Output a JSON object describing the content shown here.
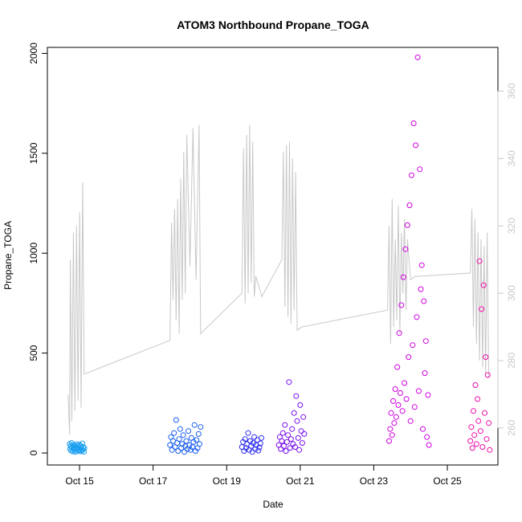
{
  "chart_data": {
    "type": "scatter",
    "title": "ATOM3 Northbound Propane_TOGA",
    "xlabel": "Date",
    "ylabel": "Propane_TOGA",
    "xlim": [
      "2017-10-14T03:00",
      "2017-10-26T09:00"
    ],
    "ylim": [
      -60,
      2030
    ],
    "y2lim": [
      249,
      373
    ],
    "x_ticks": [
      {
        "label": "Oct 15",
        "value": "2017-10-15T00:00"
      },
      {
        "label": "Oct 17",
        "value": "2017-10-17T00:00"
      },
      {
        "label": "Oct 19",
        "value": "2017-10-19T00:00"
      },
      {
        "label": "Oct 21",
        "value": "2017-10-21T00:00"
      },
      {
        "label": "Oct 23",
        "value": "2017-10-23T00:00"
      },
      {
        "label": "Oct 25",
        "value": "2017-10-25T00:00"
      }
    ],
    "y_ticks": [
      "0",
      "500",
      "1000",
      "1500",
      "2000"
    ],
    "y2_ticks": [
      "260",
      "280",
      "300",
      "320",
      "340",
      "360"
    ],
    "series": [
      {
        "color": "#1a9ff0",
        "points": [
          [
            "2017-10-14T17:30",
            45
          ],
          [
            "2017-10-14T17:50",
            20
          ],
          [
            "2017-10-14T18:10",
            35
          ],
          [
            "2017-10-14T18:30",
            12
          ],
          [
            "2017-10-14T18:50",
            50
          ],
          [
            "2017-10-14T19:10",
            28
          ],
          [
            "2017-10-14T19:30",
            8
          ],
          [
            "2017-10-14T19:50",
            40
          ],
          [
            "2017-10-14T20:10",
            22
          ],
          [
            "2017-10-14T20:30",
            15
          ],
          [
            "2017-10-14T20:50",
            38
          ],
          [
            "2017-10-14T21:10",
            5
          ],
          [
            "2017-10-14T21:30",
            30
          ],
          [
            "2017-10-14T21:50",
            18
          ],
          [
            "2017-10-14T22:10",
            44
          ],
          [
            "2017-10-14T22:30",
            10
          ],
          [
            "2017-10-14T22:50",
            25
          ],
          [
            "2017-10-14T23:10",
            33
          ],
          [
            "2017-10-14T23:30",
            14
          ],
          [
            "2017-10-14T23:50",
            42
          ],
          [
            "2017-10-15T00:10",
            20
          ],
          [
            "2017-10-15T00:30",
            8
          ],
          [
            "2017-10-15T00:50",
            36
          ],
          [
            "2017-10-15T01:10",
            26
          ],
          [
            "2017-10-15T01:30",
            12
          ],
          [
            "2017-10-15T01:50",
            48
          ],
          [
            "2017-10-15T02:10",
            16
          ],
          [
            "2017-10-15T02:30",
            30
          ],
          [
            "2017-10-15T02:50",
            6
          ],
          [
            "2017-10-15T03:10",
            24
          ]
        ]
      },
      {
        "color": "#1a5ff0",
        "points": [
          [
            "2017-10-17T11:00",
            40
          ],
          [
            "2017-10-17T11:40",
            80
          ],
          [
            "2017-10-17T12:20",
            15
          ],
          [
            "2017-10-17T13:00",
            60
          ],
          [
            "2017-10-17T13:40",
            100
          ],
          [
            "2017-10-17T14:20",
            30
          ],
          [
            "2017-10-17T15:00",
            165
          ],
          [
            "2017-10-17T15:40",
            50
          ],
          [
            "2017-10-17T16:20",
            10
          ],
          [
            "2017-10-17T17:00",
            70
          ],
          [
            "2017-10-17T17:40",
            120
          ],
          [
            "2017-10-17T18:20",
            25
          ],
          [
            "2017-10-17T19:00",
            45
          ],
          [
            "2017-10-17T19:40",
            90
          ],
          [
            "2017-10-17T20:20",
            5
          ],
          [
            "2017-10-17T21:00",
            35
          ],
          [
            "2017-10-17T21:40",
            60
          ],
          [
            "2017-10-17T22:20",
            20
          ],
          [
            "2017-10-17T23:00",
            110
          ],
          [
            "2017-10-17T23:40",
            40
          ],
          [
            "2017-10-18T00:20",
            15
          ],
          [
            "2017-10-18T01:00",
            75
          ],
          [
            "2017-10-18T01:40",
            30
          ],
          [
            "2017-10-18T02:20",
            55
          ],
          [
            "2017-10-18T03:00",
            140
          ],
          [
            "2017-10-18T03:40",
            10
          ],
          [
            "2017-10-18T04:20",
            65
          ],
          [
            "2017-10-18T05:00",
            25
          ],
          [
            "2017-10-18T05:40",
            95
          ],
          [
            "2017-10-18T06:20",
            45
          ],
          [
            "2017-10-18T07:00",
            130
          ]
        ]
      },
      {
        "color": "#2f2ff0",
        "points": [
          [
            "2017-10-19T10:00",
            30
          ],
          [
            "2017-10-19T10:40",
            55
          ],
          [
            "2017-10-19T11:20",
            10
          ],
          [
            "2017-10-19T12:00",
            70
          ],
          [
            "2017-10-19T12:40",
            25
          ],
          [
            "2017-10-19T13:20",
            45
          ],
          [
            "2017-10-19T14:00",
            100
          ],
          [
            "2017-10-19T14:40",
            15
          ],
          [
            "2017-10-19T15:20",
            60
          ],
          [
            "2017-10-19T16:00",
            35
          ],
          [
            "2017-10-19T16:40",
            5
          ],
          [
            "2017-10-19T17:20",
            50
          ],
          [
            "2017-10-19T18:00",
            80
          ],
          [
            "2017-10-19T18:40",
            20
          ],
          [
            "2017-10-19T19:20",
            40
          ],
          [
            "2017-10-19T20:00",
            65
          ],
          [
            "2017-10-19T20:40",
            12
          ],
          [
            "2017-10-19T21:20",
            28
          ],
          [
            "2017-10-19T22:00",
            48
          ],
          [
            "2017-10-19T22:40",
            75
          ]
        ]
      },
      {
        "color": "#7a10f0",
        "points": [
          [
            "2017-10-20T10:00",
            40
          ],
          [
            "2017-10-20T10:40",
            80
          ],
          [
            "2017-10-20T11:20",
            20
          ],
          [
            "2017-10-20T12:00",
            60
          ],
          [
            "2017-10-20T12:40",
            100
          ],
          [
            "2017-10-20T13:20",
            35
          ],
          [
            "2017-10-20T14:00",
            140
          ],
          [
            "2017-10-20T14:40",
            10
          ],
          [
            "2017-10-20T15:20",
            55
          ],
          [
            "2017-10-20T16:00",
            90
          ],
          [
            "2017-10-20T16:40",
            355
          ],
          [
            "2017-10-20T17:20",
            25
          ],
          [
            "2017-10-20T18:00",
            70
          ],
          [
            "2017-10-20T18:40",
            120
          ],
          [
            "2017-10-20T19:20",
            45
          ],
          [
            "2017-10-20T20:00",
            200
          ],
          [
            "2017-10-20T20:40",
            30
          ],
          [
            "2017-10-20T21:20",
            285
          ],
          [
            "2017-10-20T22:00",
            160
          ],
          [
            "2017-10-20T22:40",
            75
          ],
          [
            "2017-10-20T23:20",
            15
          ],
          [
            "2017-10-21T00:00",
            240
          ],
          [
            "2017-10-21T00:40",
            110
          ],
          [
            "2017-10-21T01:20",
            50
          ],
          [
            "2017-10-21T02:00",
            180
          ],
          [
            "2017-10-21T02:40",
            95
          ]
        ]
      },
      {
        "color": "#d000e0",
        "points": [
          [
            "2017-10-23T10:00",
            60
          ],
          [
            "2017-10-23T10:40",
            120
          ],
          [
            "2017-10-23T11:20",
            200
          ],
          [
            "2017-10-23T12:00",
            90
          ],
          [
            "2017-10-23T12:40",
            260
          ],
          [
            "2017-10-23T13:20",
            150
          ],
          [
            "2017-10-23T14:00",
            320
          ],
          [
            "2017-10-23T14:40",
            180
          ],
          [
            "2017-10-23T15:20",
            430
          ],
          [
            "2017-10-23T16:00",
            240
          ],
          [
            "2017-10-23T16:40",
            600
          ],
          [
            "2017-10-23T17:20",
            300
          ],
          [
            "2017-10-23T18:00",
            740
          ],
          [
            "2017-10-23T18:40",
            210
          ],
          [
            "2017-10-23T19:20",
            880
          ],
          [
            "2017-10-23T20:00",
            350
          ],
          [
            "2017-10-23T20:40",
            1020
          ],
          [
            "2017-10-23T21:20",
            270
          ],
          [
            "2017-10-23T22:00",
            1140
          ],
          [
            "2017-10-23T22:40",
            480
          ],
          [
            "2017-10-23T23:20",
            1240
          ],
          [
            "2017-10-24T00:00",
            160
          ],
          [
            "2017-10-24T00:40",
            1390
          ],
          [
            "2017-10-24T01:20",
            540
          ],
          [
            "2017-10-24T02:00",
            1650
          ],
          [
            "2017-10-24T02:40",
            230
          ],
          [
            "2017-10-24T03:20",
            1540
          ],
          [
            "2017-10-24T04:00",
            680
          ],
          [
            "2017-10-24T04:40",
            1980
          ],
          [
            "2017-10-24T05:20",
            310
          ],
          [
            "2017-10-24T06:00",
            1420
          ],
          [
            "2017-10-24T06:40",
            820
          ],
          [
            "2017-10-24T07:20",
            940
          ],
          [
            "2017-10-24T08:00",
            120
          ],
          [
            "2017-10-24T08:40",
            760
          ],
          [
            "2017-10-24T09:20",
            400
          ],
          [
            "2017-10-24T10:00",
            560
          ],
          [
            "2017-10-24T10:40",
            80
          ],
          [
            "2017-10-24T11:20",
            290
          ],
          [
            "2017-10-24T12:00",
            40
          ]
        ]
      },
      {
        "color": "#ee0ea8",
        "points": [
          [
            "2017-10-25T15:00",
            60
          ],
          [
            "2017-10-25T15:40",
            130
          ],
          [
            "2017-10-25T16:20",
            25
          ],
          [
            "2017-10-25T17:00",
            210
          ],
          [
            "2017-10-25T17:40",
            90
          ],
          [
            "2017-10-25T18:20",
            340
          ],
          [
            "2017-10-25T19:00",
            45
          ],
          [
            "2017-10-25T19:40",
            270
          ],
          [
            "2017-10-25T20:20",
            160
          ],
          [
            "2017-10-25T21:00",
            960
          ],
          [
            "2017-10-25T21:40",
            110
          ],
          [
            "2017-10-25T22:20",
            720
          ],
          [
            "2017-10-25T23:00",
            30
          ],
          [
            "2017-10-25T23:40",
            840
          ],
          [
            "2017-10-26T00:20",
            200
          ],
          [
            "2017-10-26T01:00",
            480
          ],
          [
            "2017-10-26T01:40",
            70
          ],
          [
            "2017-10-26T02:20",
            390
          ],
          [
            "2017-10-26T03:00",
            150
          ],
          [
            "2017-10-26T03:40",
            15
          ]
        ]
      }
    ],
    "secondary_line": {
      "color": "#c8c8c8",
      "points": [
        [
          "2017-10-14T16:30",
          270
        ],
        [
          "2017-10-14T17:30",
          258
        ],
        [
          "2017-10-14T18:00",
          310
        ],
        [
          "2017-10-14T19:00",
          262
        ],
        [
          "2017-10-14T20:00",
          318
        ],
        [
          "2017-10-14T21:00",
          265
        ],
        [
          "2017-10-14T22:00",
          320
        ],
        [
          "2017-10-14T23:00",
          268
        ],
        [
          "2017-10-15T00:00",
          324
        ],
        [
          "2017-10-15T01:00",
          266
        ],
        [
          "2017-10-15T02:00",
          333
        ],
        [
          "2017-10-15T03:00",
          276
        ],
        [
          "2017-10-17T11:00",
          286
        ],
        [
          "2017-10-17T12:00",
          321
        ],
        [
          "2017-10-17T13:00",
          298
        ],
        [
          "2017-10-17T14:00",
          325
        ],
        [
          "2017-10-17T15:00",
          292
        ],
        [
          "2017-10-17T16:00",
          328
        ],
        [
          "2017-10-17T17:00",
          288
        ],
        [
          "2017-10-17T18:00",
          334
        ],
        [
          "2017-10-17T19:00",
          298
        ],
        [
          "2017-10-17T20:00",
          342
        ],
        [
          "2017-10-17T21:00",
          300
        ],
        [
          "2017-10-17T22:00",
          347
        ],
        [
          "2017-10-18T00:00",
          308
        ],
        [
          "2017-10-18T02:00",
          349
        ],
        [
          "2017-10-18T04:00",
          304
        ],
        [
          "2017-10-18T06:00",
          350
        ],
        [
          "2017-10-18T07:00",
          288
        ],
        [
          "2017-10-19T10:00",
          300
        ],
        [
          "2017-10-19T11:00",
          343
        ],
        [
          "2017-10-19T12:00",
          297
        ],
        [
          "2017-10-19T13:00",
          347
        ],
        [
          "2017-10-19T14:00",
          300
        ],
        [
          "2017-10-19T15:00",
          350
        ],
        [
          "2017-10-19T16:00",
          303
        ],
        [
          "2017-10-19T17:00",
          345
        ],
        [
          "2017-10-19T18:00",
          299
        ],
        [
          "2017-10-19T19:00",
          305
        ],
        [
          "2017-10-19T23:00",
          299
        ],
        [
          "2017-10-20T12:00",
          310
        ],
        [
          "2017-10-20T13:00",
          342
        ],
        [
          "2017-10-20T14:00",
          296
        ],
        [
          "2017-10-20T15:00",
          344
        ],
        [
          "2017-10-20T16:00",
          293
        ],
        [
          "2017-10-20T17:00",
          345
        ],
        [
          "2017-10-20T18:00",
          291
        ],
        [
          "2017-10-20T19:00",
          340
        ],
        [
          "2017-10-20T20:00",
          295
        ],
        [
          "2017-10-20T21:00",
          336
        ],
        [
          "2017-10-20T22:00",
          289
        ],
        [
          "2017-10-21T01:00",
          290
        ],
        [
          "2017-10-23T09:00",
          295
        ],
        [
          "2017-10-23T10:00",
          320
        ],
        [
          "2017-10-23T11:00",
          285
        ],
        [
          "2017-10-23T12:00",
          328
        ],
        [
          "2017-10-23T13:00",
          290
        ],
        [
          "2017-10-23T14:00",
          316
        ],
        [
          "2017-10-23T15:00",
          292
        ],
        [
          "2017-10-23T16:00",
          326
        ],
        [
          "2017-10-23T17:00",
          288
        ],
        [
          "2017-10-23T18:00",
          318
        ],
        [
          "2017-10-23T19:00",
          300
        ],
        [
          "2017-10-23T20:00",
          322
        ],
        [
          "2017-10-23T21:00",
          295
        ],
        [
          "2017-10-23T22:00",
          316
        ],
        [
          "2017-10-24T00:00",
          304
        ],
        [
          "2017-10-24T03:00",
          305
        ],
        [
          "2017-10-25T15:00",
          306
        ],
        [
          "2017-10-25T16:00",
          325
        ],
        [
          "2017-10-25T17:00",
          290
        ],
        [
          "2017-10-25T18:00",
          322
        ],
        [
          "2017-10-25T19:00",
          285
        ],
        [
          "2017-10-25T20:00",
          318
        ],
        [
          "2017-10-25T21:00",
          280
        ],
        [
          "2017-10-25T22:00",
          316
        ],
        [
          "2017-10-25T23:00",
          278
        ],
        [
          "2017-10-26T00:00",
          314
        ],
        [
          "2017-10-26T01:00",
          276
        ],
        [
          "2017-10-26T02:00",
          318
        ],
        [
          "2017-10-26T03:00",
          275
        ]
      ]
    },
    "grid": false,
    "marker": "open-circle"
  }
}
